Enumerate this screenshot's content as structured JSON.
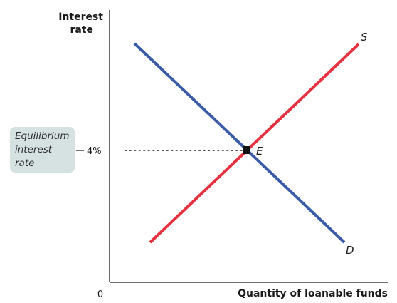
{
  "diagram": {
    "y_axis_label_line1": "Interest",
    "y_axis_label_line2": "rate",
    "x_axis_label": "Quantity of loanable funds",
    "origin_label": "0",
    "rate_tick_label": "4%",
    "supply_curve_label": "S",
    "demand_curve_label": "D",
    "equilibrium_point_label": "E",
    "callout_line1": "Equilibrium",
    "callout_line2": "interest",
    "callout_line3": "rate",
    "colors": {
      "supply": "#e8313f",
      "demand": "#3a5ba8",
      "callout_bg": "#d6e2e2",
      "axis": "#1a1a1a"
    }
  }
}
